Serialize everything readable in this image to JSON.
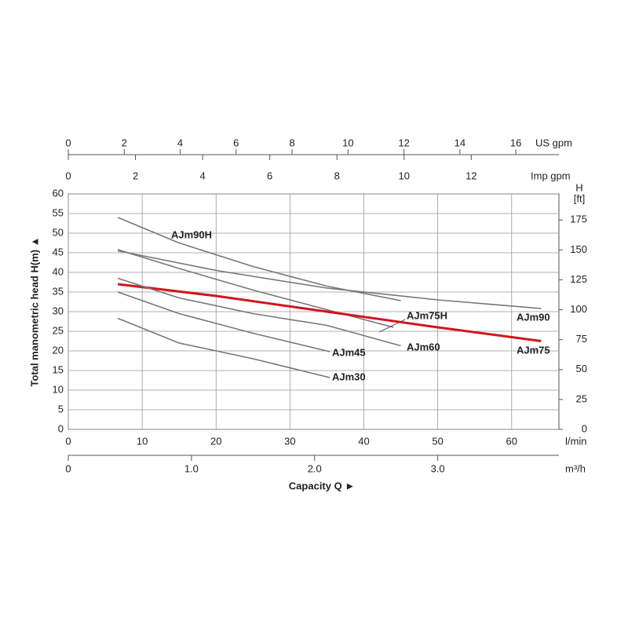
{
  "chart_data": {
    "type": "line",
    "y_label": "Total manometric head H(m)  ▲",
    "x_label": "Capacity Q  ►",
    "x_unit": "l/min",
    "xlim": [
      0,
      66.4
    ],
    "xticks": [
      0,
      10,
      20,
      30,
      40,
      50,
      60
    ],
    "ylim": [
      0,
      60
    ],
    "yticks": [
      0,
      5,
      10,
      15,
      20,
      25,
      30,
      35,
      40,
      45,
      50,
      55,
      60
    ],
    "y2_label": [
      "H",
      "[ft]"
    ],
    "y2lim": [
      0,
      196.85
    ],
    "y2ticks": [
      0,
      25,
      50,
      75,
      100,
      125,
      150,
      175
    ],
    "grid": true,
    "us_gpm": {
      "label": "US gpm",
      "lim": [
        0,
        17.54
      ],
      "ticks": [
        0,
        2,
        4,
        6,
        8,
        10,
        12,
        14,
        16
      ]
    },
    "imp_gpm": {
      "label": "Imp gpm",
      "lim": [
        0,
        14.61
      ],
      "ticks": [
        0,
        2,
        4,
        6,
        8,
        10,
        12
      ]
    },
    "m3h": {
      "label": "m³/h",
      "lim": [
        0,
        3.984
      ],
      "ticks": [
        0,
        {
          "value": 1,
          "label": "1.0"
        },
        {
          "value": 2,
          "label": "2.0"
        },
        {
          "value": 3,
          "label": "3.0"
        }
      ]
    },
    "series": [
      {
        "name": "AJm90H",
        "color": "#777777",
        "x": [
          6.7,
          15,
          25,
          35,
          45
        ],
        "values": [
          54,
          47.5,
          41.5,
          36.5,
          32.8
        ]
      },
      {
        "name": "AJm90",
        "color": "#777777",
        "x": [
          6.7,
          20,
          35,
          50,
          64
        ],
        "values": [
          45.5,
          40.5,
          36,
          33,
          30.8
        ]
      },
      {
        "name": "AJm75H",
        "color": "#777777",
        "x": [
          6.7,
          15,
          25,
          35,
          44
        ],
        "values": [
          45.8,
          41,
          35.5,
          30.5,
          26
        ]
      },
      {
        "name": "AJm75",
        "color": "#d0161b",
        "x": [
          6.7,
          20,
          35,
          50,
          64
        ],
        "values": [
          37,
          34,
          30,
          26,
          22.5
        ]
      },
      {
        "name": "AJm60",
        "color": "#777777",
        "x": [
          6.7,
          15,
          25,
          35,
          45
        ],
        "values": [
          38.5,
          33.5,
          29.5,
          26.5,
          21.3
        ]
      },
      {
        "name": "AJm45",
        "color": "#777777",
        "x": [
          6.7,
          15,
          25,
          35.4
        ],
        "values": [
          35,
          29.5,
          24.5,
          19.8
        ]
      },
      {
        "name": "AJm30",
        "color": "#777777",
        "x": [
          6.7,
          15,
          25,
          35.4
        ],
        "values": [
          28.3,
          22,
          18,
          13.2
        ]
      }
    ]
  }
}
